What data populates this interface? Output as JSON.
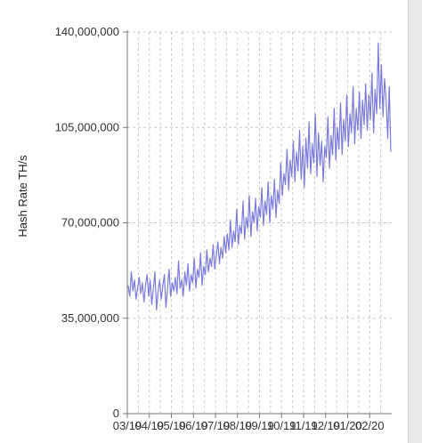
{
  "chart_data": {
    "type": "line",
    "title": "",
    "xlabel": "",
    "ylabel": "Hash Rate TH/s",
    "ylim": [
      0,
      140000000
    ],
    "y_ticks": [
      {
        "value": 0,
        "label": "0"
      },
      {
        "value": 35000000,
        "label": "35,000,000"
      },
      {
        "value": 70000000,
        "label": "70,000,000"
      },
      {
        "value": 105000000,
        "label": "105,000,000"
      },
      {
        "value": 140000000,
        "label": "140,000,000"
      }
    ],
    "x_ticks": [
      "03/19",
      "04/19",
      "05/19",
      "06/19",
      "07/19",
      "08/19",
      "09/19",
      "10/19",
      "11/19",
      "12/19",
      "01/20",
      "02/20"
    ],
    "x_tick_labels_visible": [
      "03/19",
      "04/19",
      "05/19",
      "06/19",
      "07/19",
      "08/19",
      "09/19",
      "10/19",
      "11/19",
      "12/19",
      "01/20",
      "02/20"
    ],
    "grid": true,
    "legend": "none",
    "colors": {
      "line": "#7b7bdd",
      "grid": "#c8c8c8",
      "axis": "#777777"
    },
    "series": [
      {
        "values": [
          47000000,
          43000000,
          52000000,
          45000000,
          49000000,
          42000000,
          46000000,
          50000000,
          44000000,
          48000000,
          41000000,
          47000000,
          51000000,
          43000000,
          49000000,
          40000000,
          46000000,
          52000000,
          38000000,
          45000000,
          49000000,
          42000000,
          47000000,
          51000000,
          39000000,
          46000000,
          53000000,
          43000000,
          48000000,
          45000000,
          50000000,
          44000000,
          56000000,
          46000000,
          49000000,
          43000000,
          52000000,
          47000000,
          55000000,
          45000000,
          51000000,
          48000000,
          57000000,
          46000000,
          53000000,
          50000000,
          59000000,
          47000000,
          54000000,
          51000000,
          60000000,
          52000000,
          57000000,
          54000000,
          62000000,
          53000000,
          58000000,
          63000000,
          55000000,
          61000000,
          57000000,
          65000000,
          59000000,
          66000000,
          60000000,
          71000000,
          61000000,
          67000000,
          63000000,
          75000000,
          62000000,
          69000000,
          66000000,
          78000000,
          64000000,
          72000000,
          68000000,
          80000000,
          65000000,
          74000000,
          70000000,
          79000000,
          67000000,
          76000000,
          72000000,
          83000000,
          69000000,
          78000000,
          73000000,
          85000000,
          70000000,
          80000000,
          75000000,
          86000000,
          72000000,
          82000000,
          77000000,
          92000000,
          80000000,
          88000000,
          84000000,
          97000000,
          82000000,
          93000000,
          87000000,
          100000000,
          85000000,
          96000000,
          89000000,
          104000000,
          86000000,
          98000000,
          83000000,
          101000000,
          90000000,
          107000000,
          88000000,
          99000000,
          92000000,
          110000000,
          87000000,
          103000000,
          91000000,
          100000000,
          85000000,
          98000000,
          94000000,
          109000000,
          90000000,
          102000000,
          95000000,
          112000000,
          93000000,
          105000000,
          97000000,
          114000000,
          95000000,
          108000000,
          100000000,
          117000000,
          98000000,
          110000000,
          103000000,
          120000000,
          99000000,
          112000000,
          104000000,
          118000000,
          101000000,
          115000000,
          106000000,
          121000000,
          104000000,
          117000000,
          108000000,
          125000000,
          103000000,
          119000000,
          110000000,
          136000000,
          112000000,
          128000000,
          109000000,
          123000000,
          115000000,
          101000000,
          120000000,
          96000000
        ]
      }
    ]
  }
}
